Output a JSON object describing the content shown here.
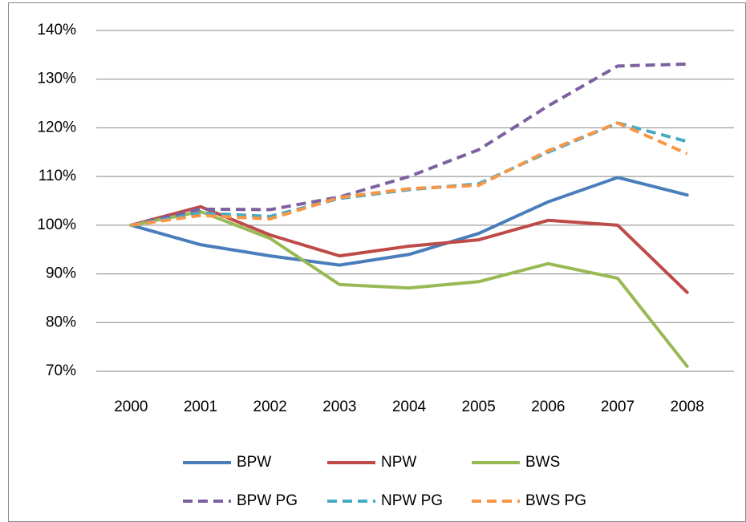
{
  "chart_data": {
    "type": "line",
    "categories": [
      "2000",
      "2001",
      "2002",
      "2003",
      "2004",
      "2005",
      "2006",
      "2007",
      "2008"
    ],
    "series": [
      {
        "name": "BPW",
        "color": "#4a7ebb",
        "dashed": false,
        "values": [
          100,
          96,
          93.7,
          91.8,
          94,
          98.3,
          104.8,
          109.8,
          106.2
        ]
      },
      {
        "name": "NPW",
        "color": "#be4b48",
        "dashed": false,
        "values": [
          100,
          103.8,
          98,
          93.7,
          95.7,
          97,
          101,
          100,
          86.2
        ]
      },
      {
        "name": "BWS",
        "color": "#98b954",
        "dashed": false,
        "values": [
          100,
          102.8,
          97.3,
          87.8,
          87.1,
          88.4,
          92.1,
          89.1,
          71
        ]
      },
      {
        "name": "BPW PG",
        "color": "#7d60a0",
        "dashed": true,
        "values": [
          100,
          103.3,
          103.2,
          105.8,
          110,
          115.5,
          124.5,
          132.7,
          133.1
        ]
      },
      {
        "name": "NPW PG",
        "color": "#46aac5",
        "dashed": true,
        "values": [
          100,
          102.5,
          101.8,
          105.5,
          107.3,
          108.5,
          115,
          121,
          117.2
        ]
      },
      {
        "name": "BWS PG",
        "color": "#f79646",
        "dashed": true,
        "values": [
          100,
          102,
          101.3,
          105.7,
          107.5,
          108.2,
          115.3,
          121,
          114.7
        ]
      }
    ],
    "ylim": [
      70,
      140
    ],
    "yticks": [
      {
        "value": 70,
        "label": "70%"
      },
      {
        "value": 80,
        "label": "80%"
      },
      {
        "value": 90,
        "label": "90%"
      },
      {
        "value": 100,
        "label": "100%"
      },
      {
        "value": 110,
        "label": "110%"
      },
      {
        "value": 120,
        "label": "120%"
      },
      {
        "value": 130,
        "label": "130%"
      },
      {
        "value": 140,
        "label": "140%"
      }
    ],
    "grid": true,
    "legend": "bottom"
  }
}
